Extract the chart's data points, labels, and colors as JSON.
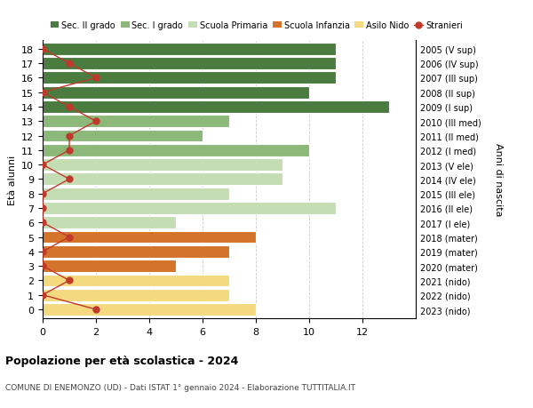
{
  "ages": [
    18,
    17,
    16,
    15,
    14,
    13,
    12,
    11,
    10,
    9,
    8,
    7,
    6,
    5,
    4,
    3,
    2,
    1,
    0
  ],
  "years": [
    "2005 (V sup)",
    "2006 (IV sup)",
    "2007 (III sup)",
    "2008 (II sup)",
    "2009 (I sup)",
    "2010 (III med)",
    "2011 (II med)",
    "2012 (I med)",
    "2013 (V ele)",
    "2014 (IV ele)",
    "2015 (III ele)",
    "2016 (II ele)",
    "2017 (I ele)",
    "2018 (mater)",
    "2019 (mater)",
    "2020 (mater)",
    "2021 (nido)",
    "2022 (nido)",
    "2023 (nido)"
  ],
  "bar_values": [
    11,
    11,
    11,
    10,
    13,
    7,
    6,
    10,
    9,
    9,
    7,
    11,
    5,
    8,
    7,
    5,
    7,
    7,
    8
  ],
  "bar_colors": [
    "#4a7c3f",
    "#4a7c3f",
    "#4a7c3f",
    "#4a7c3f",
    "#4a7c3f",
    "#8cb87a",
    "#8cb87a",
    "#8cb87a",
    "#c5ddb3",
    "#c5ddb3",
    "#c5ddb3",
    "#c5ddb3",
    "#c5ddb3",
    "#d4742a",
    "#d4742a",
    "#d4742a",
    "#f5d97e",
    "#f5d97e",
    "#f5d97e"
  ],
  "stranieri_values": [
    0,
    1,
    2,
    0,
    1,
    2,
    1,
    1,
    0,
    1,
    0,
    0,
    0,
    1,
    0,
    0,
    1,
    0,
    2
  ],
  "legend_labels": [
    "Sec. II grado",
    "Sec. I grado",
    "Scuola Primaria",
    "Scuola Infanzia",
    "Asilo Nido",
    "Stranieri"
  ],
  "legend_colors": [
    "#4a7c3f",
    "#8cb87a",
    "#c5ddb3",
    "#d4742a",
    "#f5d97e",
    "#c0392b"
  ],
  "title": "Popolazione per età scolastica - 2024",
  "subtitle": "COMUNE DI ENEMONZO (UD) - Dati ISTAT 1° gennaio 2024 - Elaborazione TUTTITALIA.IT",
  "ylabel": "Età alunni",
  "right_ylabel": "Anni di nascita",
  "xlim_max": 14,
  "xticks": [
    0,
    2,
    4,
    6,
    8,
    10,
    12
  ],
  "stranieri_color": "#c0392b",
  "bg_color": "#ffffff",
  "bar_height": 0.85,
  "grid_color": "#cccccc"
}
